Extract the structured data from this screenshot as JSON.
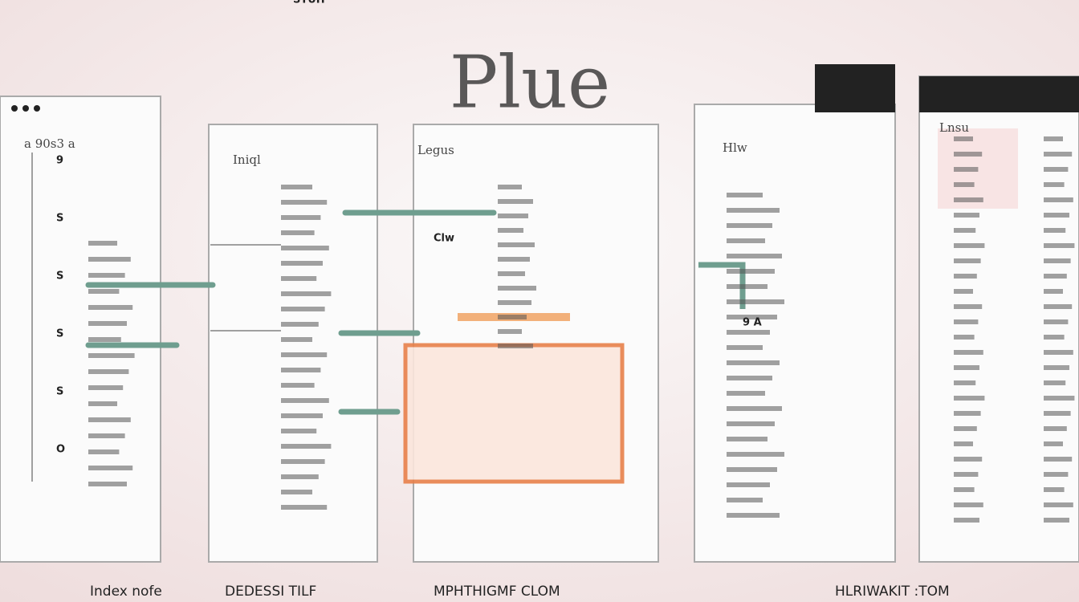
{
  "header": {
    "title": "Plue"
  },
  "panels": [
    {
      "heading": "a 90s3 a",
      "items": [
        "9",
        "S",
        "S",
        "S",
        "S",
        "O"
      ]
    },
    {
      "heading": "Iniql",
      "items": [
        "STUH"
      ]
    },
    {
      "heading": "Legus",
      "items": [
        "Clw"
      ]
    },
    {
      "heading": "Hlw",
      "items": [
        "9 A"
      ]
    },
    {
      "heading": "Lnsu",
      "items": []
    }
  ],
  "captions": [
    "Index nofe",
    "DEDESSI TILF",
    "MPHTHIGMF CLOM",
    "HLRIWAKIT :TOM"
  ]
}
